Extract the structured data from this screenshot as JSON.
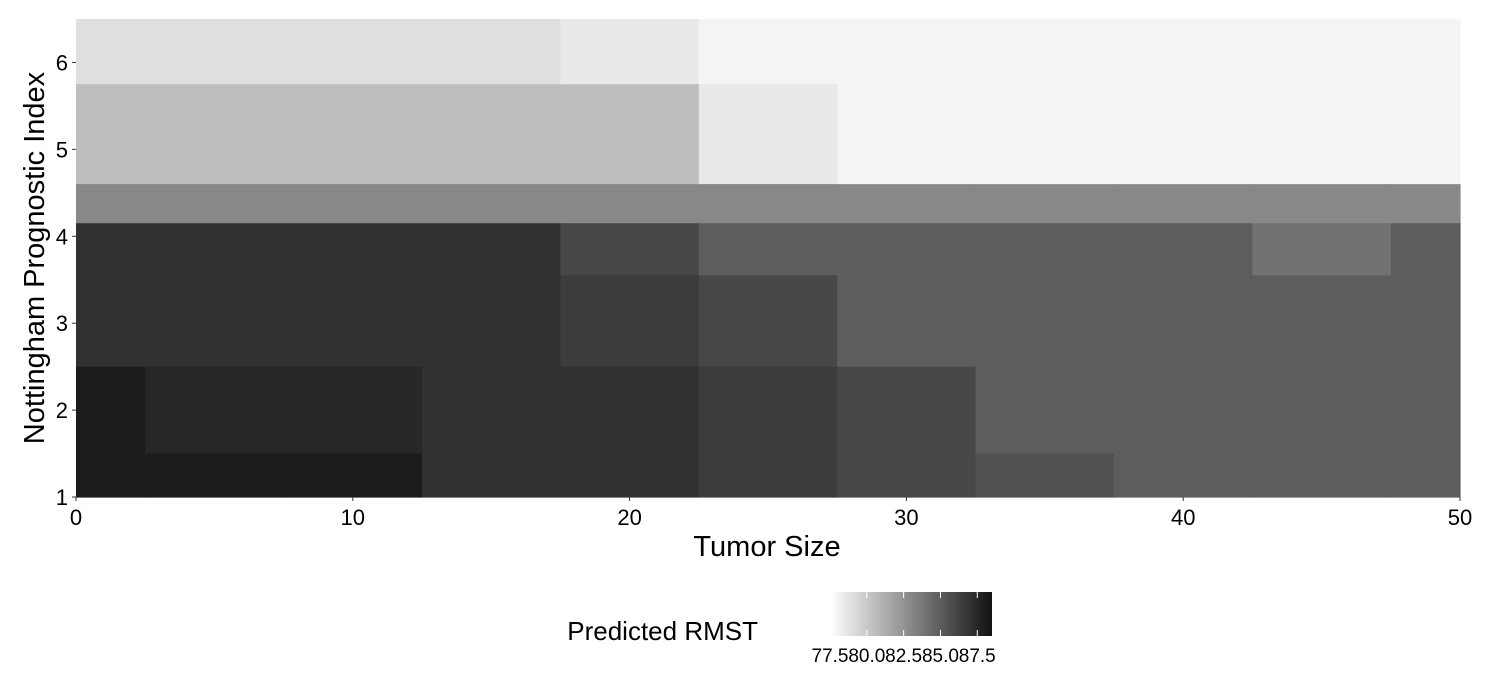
{
  "chart_data": {
    "type": "heatmap",
    "title": "",
    "xlabel": "Tumor Size",
    "ylabel": "Nottingham Prognostic Index",
    "xlim": [
      0,
      50
    ],
    "ylim": [
      1,
      6.5
    ],
    "x_ticks": [
      0,
      10,
      20,
      30,
      40,
      50
    ],
    "y_ticks": [
      1,
      2,
      3,
      4,
      5,
      6
    ],
    "grid": false,
    "legend": {
      "title": "Predicted RMST",
      "placement": "bottom",
      "range": [
        77.5,
        88.5
      ],
      "ticks": [
        77.5,
        80.0,
        82.5,
        85.0,
        87.5
      ],
      "tick_labels": [
        "77.5",
        "80.0",
        "82.5",
        "85.0",
        "87.5"
      ],
      "low_color": "#ffffff",
      "high_color": "#111111"
    },
    "y_values": [
      6.5,
      5.0,
      4.2,
      4.1,
      3.0,
      2.0,
      1.0
    ],
    "x_values": [
      0,
      5,
      10,
      15,
      20,
      25,
      30,
      35,
      40,
      45,
      50
    ],
    "z": [
      [
        79.0,
        79.0,
        79.0,
        79.0,
        78.5,
        78.0,
        78.0,
        78.0,
        78.0,
        78.0,
        78.0
      ],
      [
        80.5,
        80.5,
        80.5,
        80.5,
        80.5,
        78.5,
        78.0,
        78.0,
        78.0,
        78.0,
        78.0
      ],
      [
        83.0,
        83.0,
        83.0,
        83.0,
        83.0,
        83.0,
        83.0,
        83.0,
        83.0,
        83.0,
        83.0
      ],
      [
        87.0,
        87.0,
        87.0,
        87.0,
        86.0,
        85.0,
        85.0,
        85.0,
        85.0,
        84.0,
        85.0
      ],
      [
        87.0,
        87.0,
        87.0,
        87.0,
        86.5,
        86.0,
        85.0,
        85.0,
        85.0,
        85.0,
        85.0
      ],
      [
        88.0,
        87.5,
        87.5,
        87.0,
        87.0,
        86.5,
        86.0,
        85.0,
        85.0,
        85.0,
        85.0
      ],
      [
        88.0,
        88.0,
        88.0,
        87.0,
        87.0,
        86.5,
        86.0,
        85.5,
        85.0,
        85.0,
        85.0
      ]
    ]
  }
}
